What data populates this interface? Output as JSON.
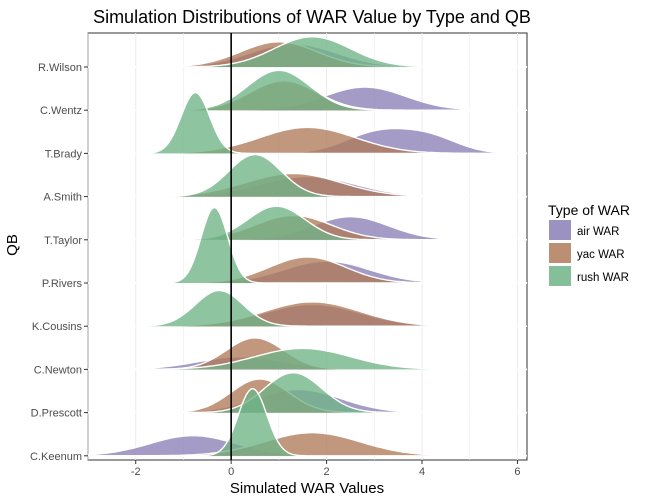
{
  "chart_data": {
    "type": "ridgeline",
    "title": "Simulation Distributions of WAR Value by Type and QB",
    "xlabel": "Simulated WAR Values",
    "ylabel": "QB",
    "xlim": [
      -3,
      6.2
    ],
    "x_ticks": [
      -2,
      0,
      2,
      4,
      6
    ],
    "reference_line_x": 0,
    "grid": true,
    "legend": {
      "title": "Type of WAR",
      "position": "right",
      "items": [
        {
          "label": "air WAR",
          "color": "#8a7fb6"
        },
        {
          "label": "yac WAR",
          "color": "#b07a5a"
        },
        {
          "label": "rush WAR",
          "color": "#6fb487"
        }
      ]
    },
    "categories": [
      "R.Wilson",
      "C.Wentz",
      "T.Brady",
      "A.Smith",
      "T.Taylor",
      "P.Rivers",
      "K.Cousins",
      "C.Newton",
      "D.Prescott",
      "C.Keenum"
    ],
    "series": [
      {
        "name": "air WAR",
        "color": "#8a7fb6",
        "values": [
          {
            "qb": "R.Wilson",
            "components": [
              {
                "mean": 1.3,
                "sd": 0.9,
                "h": 0.55
              }
            ]
          },
          {
            "qb": "C.Wentz",
            "components": [
              {
                "mean": 2.8,
                "sd": 0.85,
                "h": 0.55
              }
            ]
          },
          {
            "qb": "T.Brady",
            "components": [
              {
                "mean": 3.1,
                "sd": 0.7,
                "h": 0.5
              },
              {
                "mean": 4.2,
                "sd": 0.6,
                "h": 0.33
              }
            ]
          },
          {
            "qb": "A.Smith",
            "components": [
              {
                "mean": 1.6,
                "sd": 1.0,
                "h": 0.48
              }
            ]
          },
          {
            "qb": "T.Taylor",
            "components": [
              {
                "mean": 2.5,
                "sd": 0.8,
                "h": 0.55
              }
            ]
          },
          {
            "qb": "P.Rivers",
            "components": [
              {
                "mean": 2.0,
                "sd": 0.9,
                "h": 0.52
              }
            ]
          },
          {
            "qb": "K.Cousins",
            "components": [
              {
                "mean": 1.7,
                "sd": 1.0,
                "h": 0.52
              }
            ]
          },
          {
            "qb": "C.Newton",
            "components": [
              {
                "mean": 0.2,
                "sd": 0.9,
                "h": 0.3
              }
            ]
          },
          {
            "qb": "D.Prescott",
            "components": [
              {
                "mean": 1.4,
                "sd": 0.9,
                "h": 0.55
              }
            ]
          },
          {
            "qb": "C.Keenum",
            "components": [
              {
                "mean": -0.8,
                "sd": 0.9,
                "h": 0.48
              }
            ]
          }
        ]
      },
      {
        "name": "yac WAR",
        "color": "#b07a5a",
        "values": [
          {
            "qb": "R.Wilson",
            "components": [
              {
                "mean": 1.0,
                "sd": 0.8,
                "h": 0.6
              }
            ]
          },
          {
            "qb": "C.Wentz",
            "components": [
              {
                "mean": 1.1,
                "sd": 0.7,
                "h": 0.7
              }
            ]
          },
          {
            "qb": "T.Brady",
            "components": [
              {
                "mean": 1.6,
                "sd": 1.0,
                "h": 0.62
              }
            ]
          },
          {
            "qb": "A.Smith",
            "components": [
              {
                "mean": 1.3,
                "sd": 1.0,
                "h": 0.55
              }
            ]
          },
          {
            "qb": "T.Taylor",
            "components": [
              {
                "mean": 1.3,
                "sd": 0.8,
                "h": 0.58
              }
            ]
          },
          {
            "qb": "P.Rivers",
            "components": [
              {
                "mean": 1.6,
                "sd": 0.8,
                "h": 0.62
              }
            ]
          },
          {
            "qb": "K.Cousins",
            "components": [
              {
                "mean": 1.7,
                "sd": 1.0,
                "h": 0.58
              }
            ]
          },
          {
            "qb": "C.Newton",
            "components": [
              {
                "mean": 0.5,
                "sd": 0.6,
                "h": 0.75
              }
            ]
          },
          {
            "qb": "D.Prescott",
            "components": [
              {
                "mean": 0.6,
                "sd": 0.6,
                "h": 0.8
              }
            ]
          },
          {
            "qb": "C.Keenum",
            "components": [
              {
                "mean": 1.7,
                "sd": 1.0,
                "h": 0.55
              }
            ]
          }
        ]
      },
      {
        "name": "rush WAR",
        "color": "#6fb487",
        "values": [
          {
            "qb": "R.Wilson",
            "components": [
              {
                "mean": 1.7,
                "sd": 0.8,
                "h": 0.72
              }
            ]
          },
          {
            "qb": "C.Wentz",
            "components": [
              {
                "mean": 1.0,
                "sd": 0.65,
                "h": 0.95
              }
            ]
          },
          {
            "qb": "T.Brady",
            "components": [
              {
                "mean": -0.75,
                "sd": 0.3,
                "h": 1.45
              }
            ]
          },
          {
            "qb": "A.Smith",
            "components": [
              {
                "mean": 0.5,
                "sd": 0.55,
                "h": 1.0
              }
            ]
          },
          {
            "qb": "T.Taylor",
            "components": [
              {
                "mean": 0.95,
                "sd": 0.6,
                "h": 0.8
              }
            ]
          },
          {
            "qb": "P.Rivers",
            "components": [
              {
                "mean": -0.35,
                "sd": 0.28,
                "h": 1.8
              }
            ]
          },
          {
            "qb": "K.Cousins",
            "components": [
              {
                "mean": -0.25,
                "sd": 0.5,
                "h": 0.85
              }
            ]
          },
          {
            "qb": "C.Newton",
            "components": [
              {
                "mean": 1.5,
                "sd": 1.0,
                "h": 0.5
              }
            ]
          },
          {
            "qb": "D.Prescott",
            "components": [
              {
                "mean": 1.3,
                "sd": 0.6,
                "h": 0.95
              }
            ]
          },
          {
            "qb": "C.Keenum",
            "components": [
              {
                "mean": 0.45,
                "sd": 0.3,
                "h": 1.6
              }
            ]
          }
        ]
      }
    ]
  }
}
